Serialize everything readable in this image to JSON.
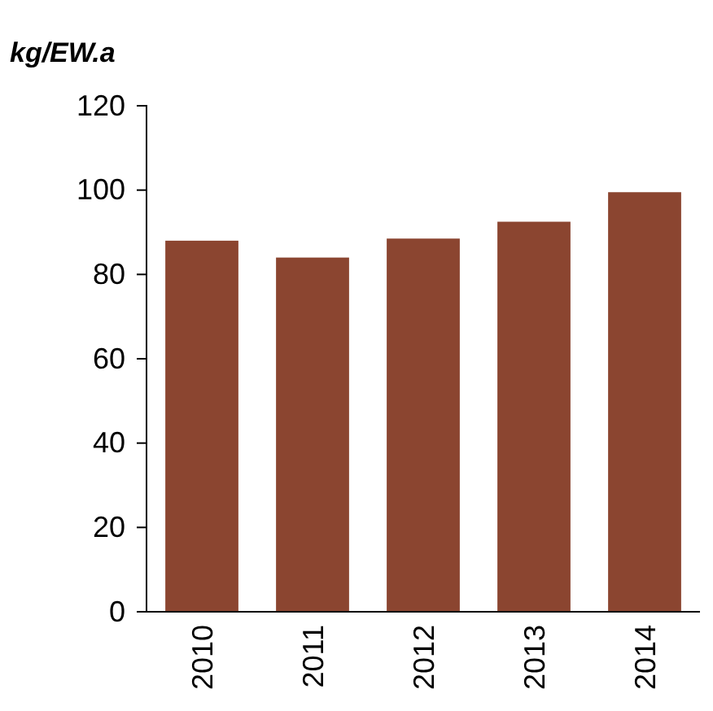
{
  "chart_data": {
    "type": "bar",
    "ylabel": "kg/EW.a",
    "categories": [
      "2010",
      "2011",
      "2012",
      "2013",
      "2014"
    ],
    "values": [
      88,
      84,
      88.5,
      92.5,
      99.5
    ],
    "color": "#8b4530",
    "ylim": [
      0,
      120
    ],
    "yticks": [
      0,
      20,
      40,
      60,
      80,
      100,
      120
    ],
    "grid": false
  }
}
